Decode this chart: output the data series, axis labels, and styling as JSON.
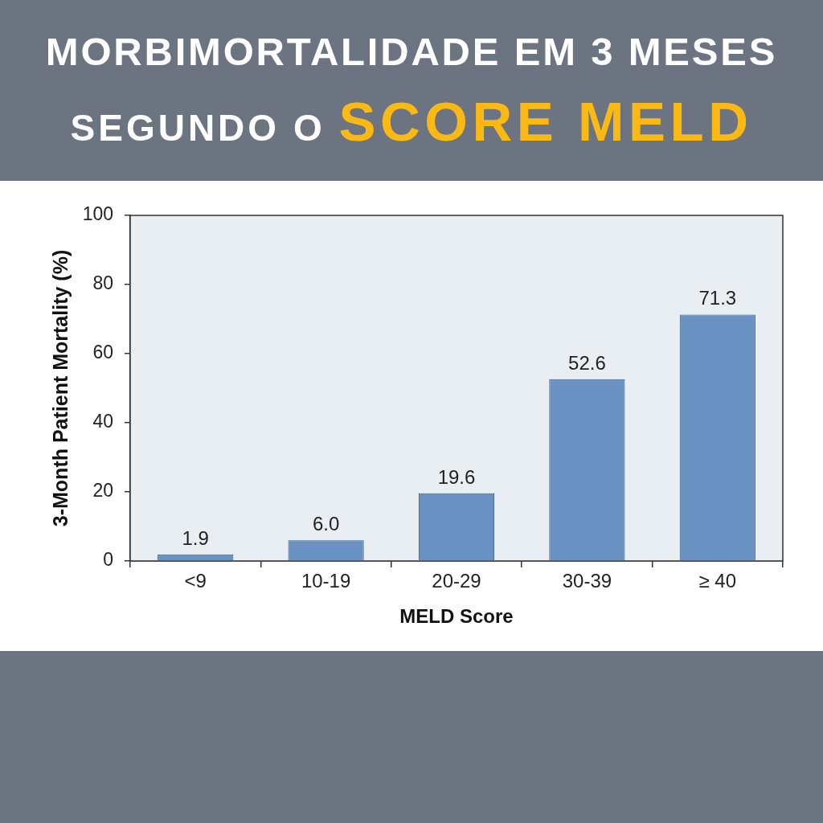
{
  "chart_data": {
    "type": "bar",
    "title": "MORBIMORTALIDADE EM 3 MESES",
    "subtitle": "SEGUNDO O SCORE MELD",
    "xlabel": "MELD Score",
    "ylabel": "3-Month Patient Mortality (%)",
    "categories": [
      "<9",
      "10-19",
      "20-29",
      "30-39",
      "≥ 40"
    ],
    "values": [
      1.9,
      6.0,
      19.6,
      52.6,
      71.3
    ],
    "value_labels": [
      "1.9",
      "6.0",
      "19.6",
      "52.6",
      "71.3"
    ],
    "color": "#6a93c4",
    "ylim": [
      0,
      100
    ],
    "yticks": [
      0,
      20,
      40,
      60,
      80,
      100
    ],
    "grid": false,
    "legend": false
  }
}
